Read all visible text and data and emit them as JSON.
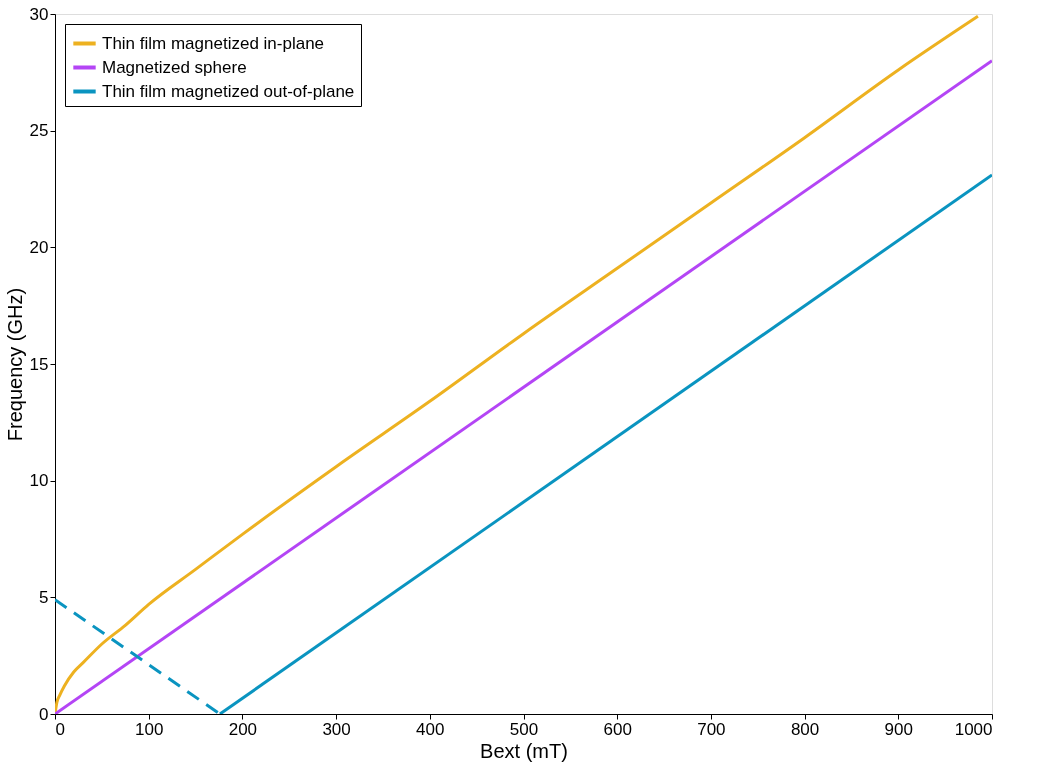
{
  "chart_data": {
    "type": "line",
    "xlabel": "Bext (mT)",
    "ylabel": "Frequency (GHz)",
    "xlim": [
      0,
      1000
    ],
    "xticks": [
      0,
      100,
      200,
      300,
      400,
      500,
      600,
      700,
      800,
      900,
      1000
    ],
    "ylim": [
      0,
      30
    ],
    "yticks": [
      0,
      5,
      10,
      15,
      20,
      25,
      30
    ],
    "grid": false,
    "legend": "top left",
    "marker": "none",
    "series": [
      {
        "name": "Thin film magnetized in-plane",
        "color": "#edb120",
        "line_style": "solid",
        "x": [
          0,
          2,
          5,
          10,
          20,
          30,
          50,
          75,
          100,
          150,
          200,
          300,
          400,
          500,
          600,
          700,
          800,
          900,
          985
        ],
        "values": [
          0,
          0.5,
          0.8,
          1.2,
          1.8,
          2.2,
          3.0,
          3.8,
          4.7,
          6.2,
          7.7,
          10.6,
          13.4,
          16.3,
          19.1,
          21.9,
          24.7,
          27.6,
          29.9
        ]
      },
      {
        "name": "Magnetized sphere",
        "color": "#b445f5",
        "line_style": "solid",
        "x": [
          0,
          1000
        ],
        "values": [
          0,
          28
        ]
      },
      {
        "name": "Thin film magnetized out-of-plane",
        "color": "#0a94c0",
        "line_style": "solid",
        "x": [
          176,
          1000
        ],
        "values": [
          0,
          23.1
        ]
      },
      {
        "color": "#0a94c0",
        "line_style": "dashed",
        "x": [
          0,
          176
        ],
        "values": [
          4.9,
          0
        ]
      }
    ]
  }
}
